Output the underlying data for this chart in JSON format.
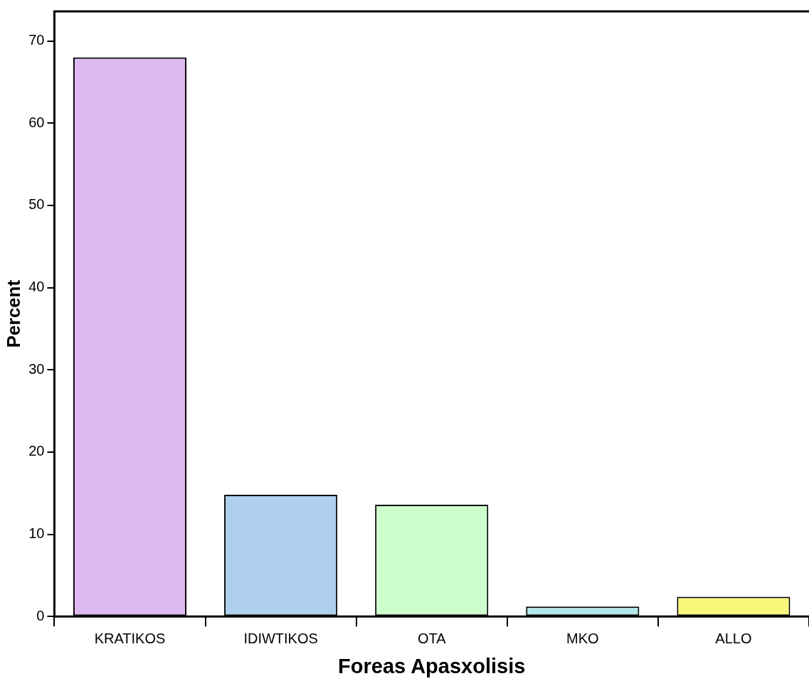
{
  "chart_data": {
    "type": "bar",
    "xlabel": "Foreas Apasxolisis",
    "ylabel": "Percent",
    "categories": [
      "KRATIKOS",
      "IDIWTIKOS",
      "OTA",
      "MKO",
      "ALLO"
    ],
    "values": [
      68.0,
      14.8,
      13.6,
      1.2,
      2.4
    ],
    "colors": [
      "#dfbaf2",
      "#aed0ee",
      "#ccffcc",
      "#b3e6e6",
      "#f8f77a"
    ],
    "ylim": [
      0,
      73.6
    ],
    "yticks": [
      0,
      10,
      20,
      30,
      40,
      50,
      60,
      70
    ]
  }
}
